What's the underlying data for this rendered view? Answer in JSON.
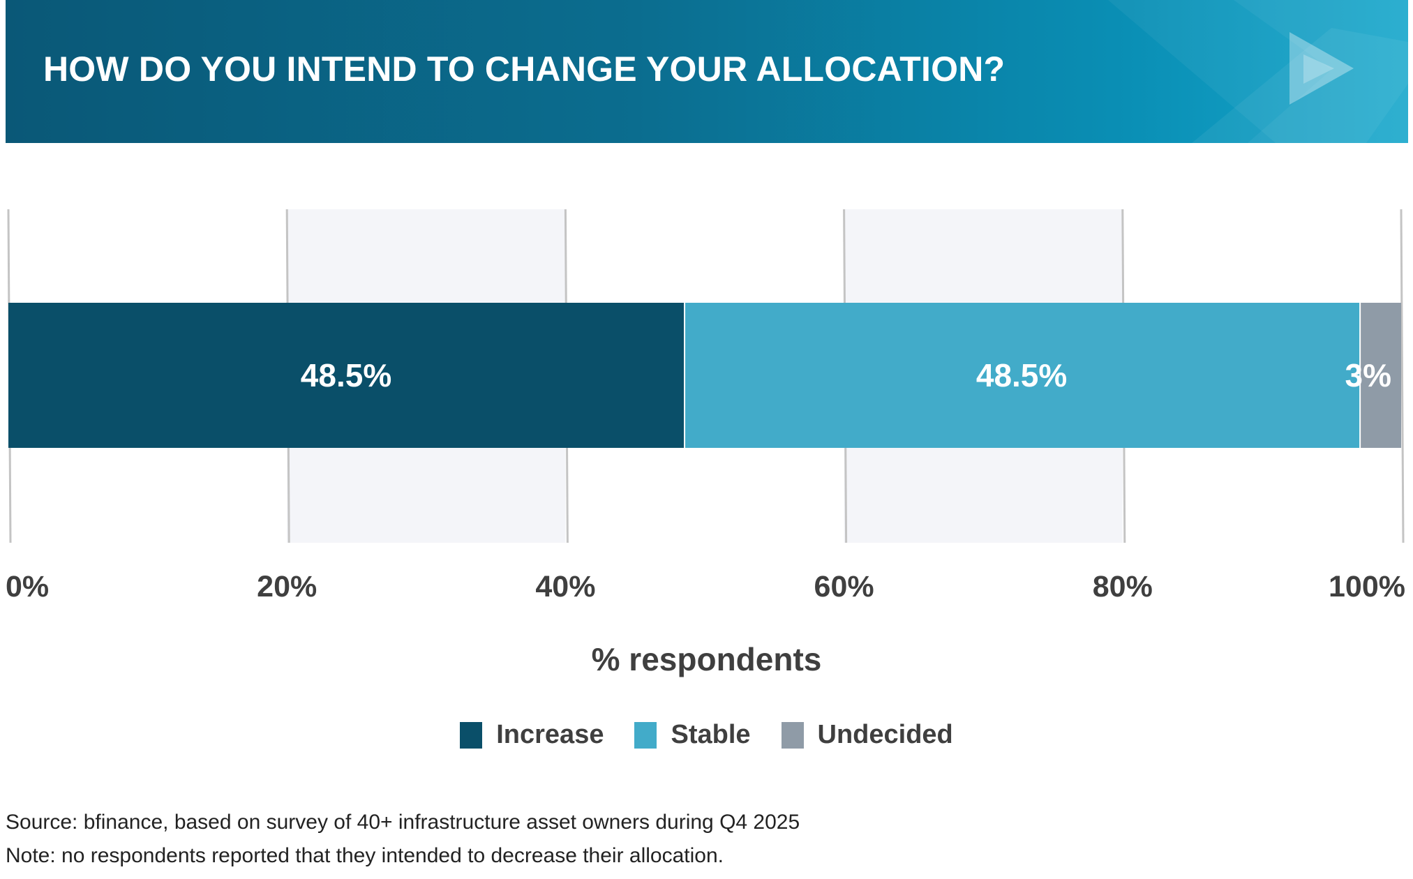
{
  "header": {
    "title": "HOW DO YOU INTEND TO CHANGE YOUR ALLOCATION?",
    "logo_icon": "play-triangle-icon"
  },
  "chart_data": {
    "type": "bar",
    "orientation": "horizontal",
    "stacked": true,
    "categories": [
      ""
    ],
    "series": [
      {
        "name": "Increase",
        "values": [
          48.5
        ],
        "label": "48.5%",
        "color": "#0a4f69"
      },
      {
        "name": "Stable",
        "values": [
          48.5
        ],
        "label": "48.5%",
        "color": "#42abc9"
      },
      {
        "name": "Undecided",
        "values": [
          3
        ],
        "label": "3%",
        "color": "#8f9ba7"
      }
    ],
    "xlim": [
      0,
      100
    ],
    "xticks": [
      0,
      20,
      40,
      60,
      80,
      100
    ],
    "xtick_labels": [
      "0%",
      "20%",
      "40%",
      "60%",
      "80%",
      "100%"
    ],
    "xlabel": "% respondents",
    "grid": "vertical",
    "legend": "bottom-center"
  },
  "notes": {
    "source": "Source: bfinance, based on survey of 40+ infrastructure asset owners during Q4 2025",
    "note": "Note: no respondents reported that they intended to decrease their allocation."
  }
}
